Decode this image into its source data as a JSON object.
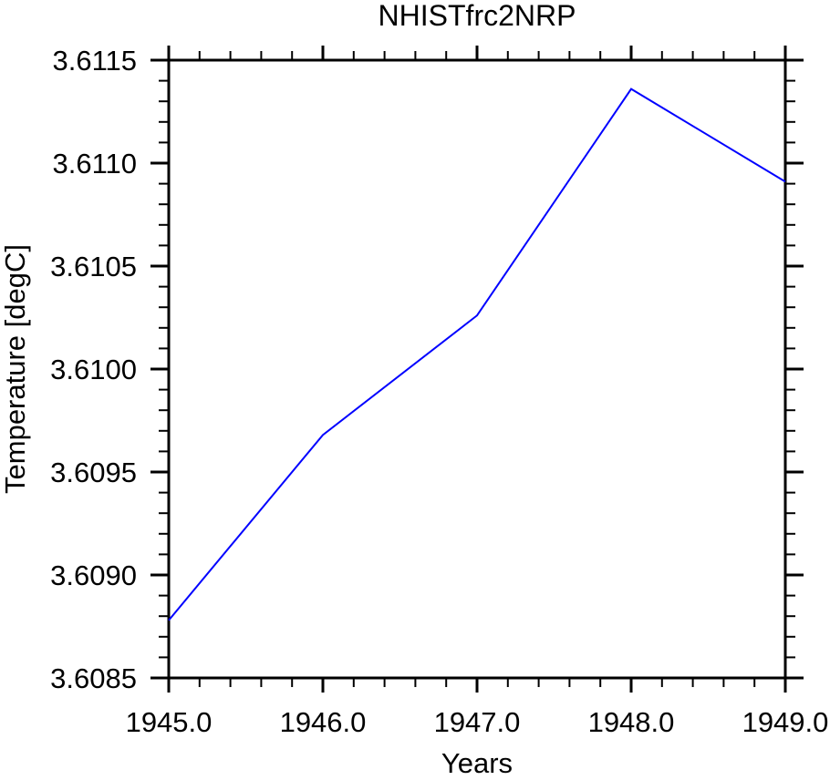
{
  "page": {
    "background": "#ffffff"
  },
  "chart_data": {
    "type": "line",
    "title": "NHISTfrc2NRP",
    "xlabel": "Years",
    "ylabel": "Temperature [degC]",
    "x": [
      1945.0,
      1946.0,
      1947.0,
      1948.0,
      1949.0
    ],
    "series": [
      {
        "name": "NHISTfrc2NRP",
        "color": "#0000ff",
        "values": [
          3.60878,
          3.60968,
          3.61026,
          3.61136,
          3.61091
        ]
      }
    ],
    "xlim": [
      1945.0,
      1949.0
    ],
    "ylim": [
      3.6085,
      3.6115
    ],
    "x_major_ticks": [
      1945.0,
      1946.0,
      1947.0,
      1948.0,
      1949.0
    ],
    "x_tick_labels": [
      "1945.0",
      "1946.0",
      "1947.0",
      "1948.0",
      "1949.0"
    ],
    "x_minor_step": 0.2,
    "y_major_ticks": [
      3.6085,
      3.609,
      3.6095,
      3.61,
      3.6105,
      3.611,
      3.6115
    ],
    "y_tick_labels": [
      "3.6085",
      "3.6090",
      "3.6095",
      "3.6100",
      "3.6105",
      "3.6110",
      "3.6115"
    ],
    "y_minor_step": 0.0001,
    "grid": false,
    "legend": false,
    "axis_color": "#000000",
    "tick_style": "outward"
  }
}
